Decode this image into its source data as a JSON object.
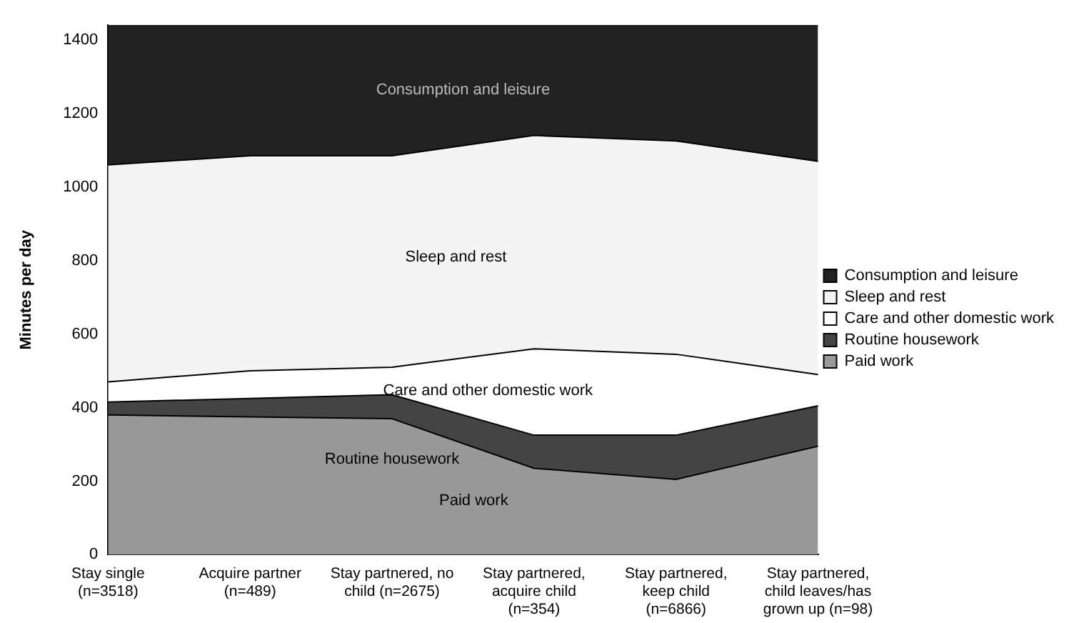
{
  "chart_data": {
    "type": "area",
    "stacked": true,
    "ylabel": "Minutes per day",
    "categories": [
      "Stay single (n=3518)",
      "Acquire partner (n=489)",
      "Stay partnered, no child (n=2675)",
      "Stay partnered, acquire child (n=354)",
      "Stay partnered, keep child (n=6866)",
      "Stay partnered, child leaves/has grown up (n=98)"
    ],
    "series": [
      {
        "name": "Paid work",
        "color": "#999999",
        "values": [
          380,
          375,
          370,
          235,
          205,
          295
        ]
      },
      {
        "name": "Routine housework",
        "color": "#444444",
        "values": [
          35,
          50,
          65,
          90,
          120,
          110
        ]
      },
      {
        "name": "Care and other domestic work",
        "color": "#ffffff",
        "values": [
          55,
          75,
          75,
          235,
          220,
          85
        ]
      },
      {
        "name": "Sleep and rest",
        "color": "#f4f4f4",
        "values": [
          590,
          585,
          575,
          580,
          580,
          580
        ]
      },
      {
        "name": "Consumption and leisure",
        "color": "#222222",
        "values": [
          380,
          355,
          355,
          300,
          315,
          370
        ]
      }
    ],
    "ylim": [
      0,
      1440
    ],
    "yticks": [
      0,
      200,
      400,
      600,
      800,
      1000,
      1200,
      1400
    ],
    "grid": false,
    "legend": "right",
    "annotations": [
      "Consumption and leisure",
      "Sleep and rest",
      "Care and other domestic work",
      "Routine housework",
      "Paid work"
    ]
  }
}
